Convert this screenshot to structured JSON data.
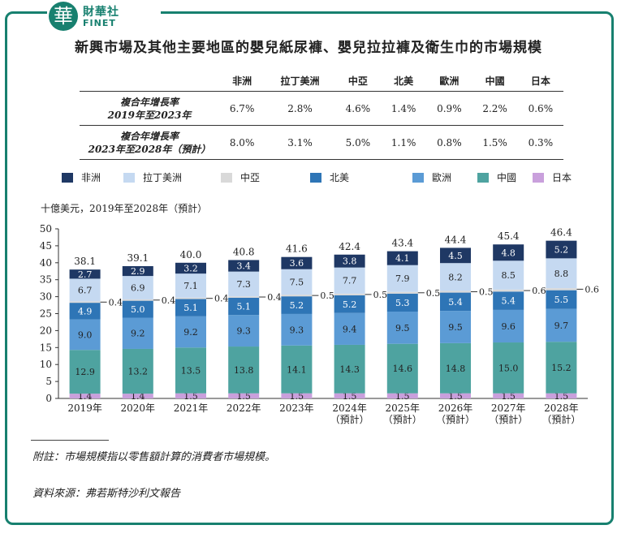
{
  "logo": {
    "glyph": "華",
    "cn": "財華社",
    "en": "FINET"
  },
  "title": "新興市場及其他主要地區的嬰兒紙尿褲、嬰兒拉拉褲及衛生巾的市場規模",
  "cagr_table": {
    "headers": [
      "非洲",
      "拉丁美洲",
      "中亞",
      "北美",
      "歐洲",
      "中國",
      "日本"
    ],
    "rows": [
      {
        "label_line1": "複合年增長率",
        "label_line2": "2019年至2023年",
        "values": [
          "6.7%",
          "2.8%",
          "4.6%",
          "1.4%",
          "0.9%",
          "2.2%",
          "0.6%"
        ]
      },
      {
        "label_line1": "複合年增長率",
        "label_line2": "2023年至2028年（預計）",
        "values": [
          "8.0%",
          "3.1%",
          "5.0%",
          "1.1%",
          "0.8%",
          "1.5%",
          "0.3%"
        ]
      }
    ]
  },
  "legend": [
    {
      "name": "非洲",
      "color": "#1f3864"
    },
    {
      "name": "拉丁美洲",
      "color": "#c5d9f1"
    },
    {
      "name": "中亞",
      "color": "#d9d9d9"
    },
    {
      "name": "北美",
      "color": "#2e75b6"
    },
    {
      "name": "歐洲",
      "color": "#5b9bd5"
    },
    {
      "name": "中國",
      "color": "#4ea3a0"
    },
    {
      "name": "日本",
      "color": "#c9a0dc"
    }
  ],
  "unit_label": "十億美元，2019年至2028年（預計）",
  "chart_data": {
    "type": "bar",
    "stacked": true,
    "categories": [
      "2019年",
      "2020年",
      "2021年",
      "2022年",
      "2023年",
      "2024年",
      "2025年",
      "2026年",
      "2027年",
      "2028年"
    ],
    "category_sublabels": [
      "",
      "",
      "",
      "",
      "",
      "（預計）",
      "（預計）",
      "（預計）",
      "（預計）",
      "（預計）"
    ],
    "ylim": [
      0,
      50
    ],
    "yticks": [
      0,
      5,
      10,
      15,
      20,
      25,
      30,
      35,
      40,
      45,
      50
    ],
    "series": [
      {
        "name": "日本",
        "values": [
          1.4,
          1.4,
          1.5,
          1.5,
          1.5,
          1.5,
          1.5,
          1.5,
          1.5,
          1.5
        ]
      },
      {
        "name": "中國",
        "values": [
          12.9,
          13.2,
          13.5,
          13.8,
          14.1,
          14.3,
          14.6,
          14.8,
          15.0,
          15.2
        ]
      },
      {
        "name": "歐洲",
        "values": [
          9.0,
          9.2,
          9.2,
          9.3,
          9.3,
          9.4,
          9.5,
          9.5,
          9.6,
          9.7
        ]
      },
      {
        "name": "北美",
        "values": [
          4.9,
          5.0,
          5.1,
          5.1,
          5.2,
          5.2,
          5.3,
          5.4,
          5.4,
          5.5
        ]
      },
      {
        "name": "中亞",
        "values": [
          0.4,
          0.4,
          0.4,
          0.4,
          0.5,
          0.5,
          0.5,
          0.5,
          0.6,
          0.6
        ]
      },
      {
        "name": "拉丁美洲",
        "values": [
          6.7,
          6.9,
          7.1,
          7.3,
          7.5,
          7.7,
          7.9,
          8.2,
          8.5,
          8.8
        ]
      },
      {
        "name": "非洲",
        "values": [
          2.7,
          2.9,
          3.2,
          3.4,
          3.6,
          3.8,
          4.1,
          4.5,
          4.8,
          5.2
        ]
      }
    ],
    "totals": [
      38.1,
      39.1,
      40.0,
      40.8,
      41.6,
      42.4,
      43.4,
      44.4,
      45.4,
      46.4
    ]
  },
  "footnote": "附註：市場規模指以零售額計算的消費者市場規模。",
  "source": "資料來源：弗若斯特沙利文報告"
}
